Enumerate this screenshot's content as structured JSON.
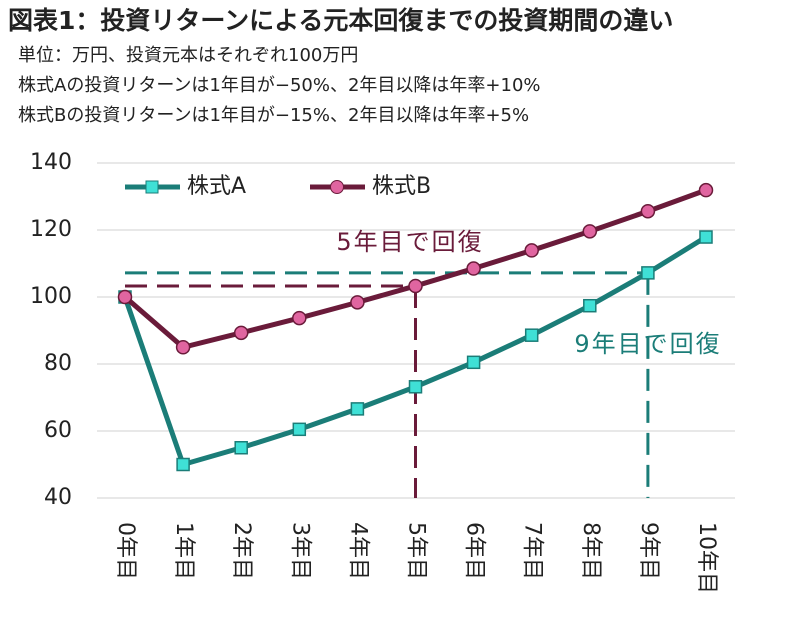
{
  "chart_data": {
    "type": "line",
    "title": "図表1：投資リターンによる元本回復までの投資期間の違い",
    "subtitles": [
      "単位：万円、投資元本はそれぞれ100万円",
      "株式Aの投資リターンは1年目が−50%、2年目以降は年率+10%",
      "株式Bの投資リターンは1年目が−15%、2年目以降は年率+5%"
    ],
    "categories": [
      "0年目",
      "1年目",
      "2年目",
      "3年目",
      "4年目",
      "5年目",
      "6年目",
      "7年目",
      "8年目",
      "9年目",
      "10年目"
    ],
    "series": [
      {
        "name": "株式A",
        "color": "#1b7d78",
        "marker_color": "#3fe0d6",
        "marker": "square",
        "values": [
          100,
          50,
          55,
          60.5,
          66.6,
          73.2,
          80.5,
          88.6,
          97.4,
          107.2,
          117.9
        ]
      },
      {
        "name": "株式B",
        "color": "#6a1b3a",
        "marker_color": "#e065a0",
        "marker": "circle",
        "values": [
          100,
          85,
          89.3,
          93.7,
          98.4,
          103.3,
          108.5,
          113.9,
          119.6,
          125.6,
          131.9
        ]
      }
    ],
    "annotations": [
      {
        "text": "5年目で回復",
        "series": 1
      },
      {
        "text": "9年目で回復",
        "series": 0
      }
    ],
    "ylim": [
      40,
      140
    ],
    "yticks": [
      40,
      60,
      80,
      100,
      120,
      140
    ],
    "grid": true,
    "legend": "top-left"
  }
}
